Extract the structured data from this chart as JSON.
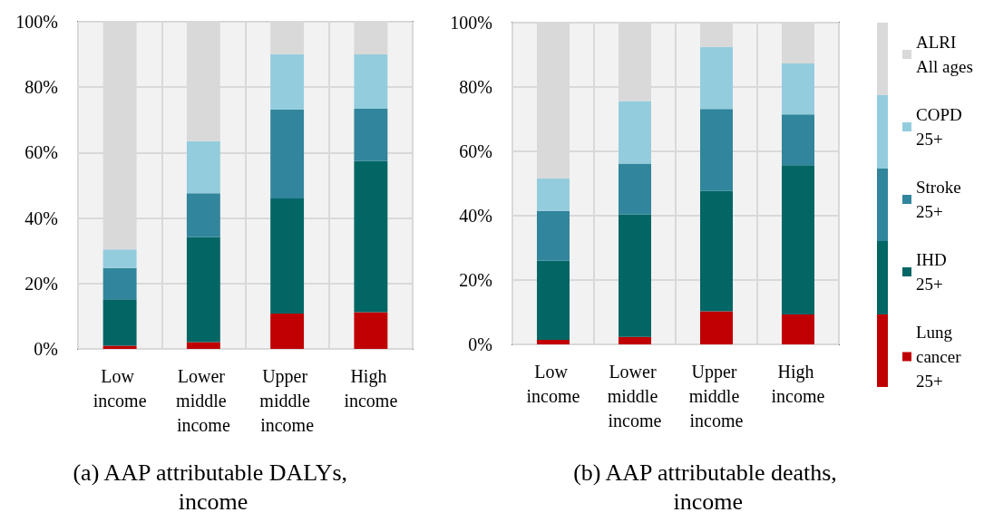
{
  "chart_data": [
    {
      "type": "bar",
      "stacked": true,
      "title": "(a) AAP attributable DALYs, income",
      "categories": [
        "Low income",
        "Lower middle income",
        "Upper middle income",
        "High income"
      ],
      "ylim": [
        0,
        100
      ],
      "yticks": [
        {
          "value": 0,
          "label": "0%"
        },
        {
          "value": 20,
          "label": "20%"
        },
        {
          "value": 40,
          "label": "40%"
        },
        {
          "value": 60,
          "label": "60%"
        },
        {
          "value": 80,
          "label": "80%"
        },
        {
          "value": 100,
          "label": "100%"
        }
      ],
      "grid": true,
      "legend": false,
      "series": [
        {
          "color": "#c00000",
          "values": [
            1.0,
            2.1,
            10.8,
            11.2
          ]
        },
        {
          "color": "#026665",
          "values": [
            14.2,
            32.1,
            35.2,
            46.2
          ]
        },
        {
          "color": "#31859c",
          "values": [
            9.5,
            13.4,
            27.2,
            16.0
          ]
        },
        {
          "color": "#93cddd",
          "values": [
            5.7,
            15.9,
            16.9,
            16.6
          ]
        },
        {
          "color": "#d9d9d9",
          "values": [
            69.6,
            36.5,
            9.9,
            10.0
          ]
        }
      ]
    },
    {
      "type": "bar",
      "stacked": true,
      "title": "(b) AAP attributable deaths, income",
      "categories": [
        "Low income",
        "Lower middle income",
        "Upper middle income",
        "High income"
      ],
      "ylim": [
        0,
        100
      ],
      "yticks": [
        {
          "value": 0,
          "label": "0%"
        },
        {
          "value": 20,
          "label": "20%"
        },
        {
          "value": 40,
          "label": "40%"
        },
        {
          "value": 60,
          "label": "60%"
        },
        {
          "value": 80,
          "label": "80%"
        },
        {
          "value": 100,
          "label": "100%"
        }
      ],
      "grid": true,
      "legend": "right",
      "series": [
        {
          "name": "Lung\ncancer\n25+",
          "color": "#c00000",
          "values": [
            1.4,
            2.3,
            10.3,
            9.3
          ]
        },
        {
          "name": "IHD\n25+",
          "color": "#026665",
          "values": [
            24.6,
            38.1,
            37.4,
            46.4
          ]
        },
        {
          "name": "Stroke\n25+",
          "color": "#31859c",
          "values": [
            15.5,
            15.8,
            25.5,
            15.8
          ]
        },
        {
          "name": "COPD\n25+",
          "color": "#93cddd",
          "values": [
            10.1,
            19.4,
            19.3,
            15.8
          ]
        },
        {
          "name": "ALRI\nAll ages",
          "color": "#d9d9d9",
          "values": [
            48.4,
            24.4,
            7.5,
            12.7
          ]
        }
      ]
    }
  ]
}
